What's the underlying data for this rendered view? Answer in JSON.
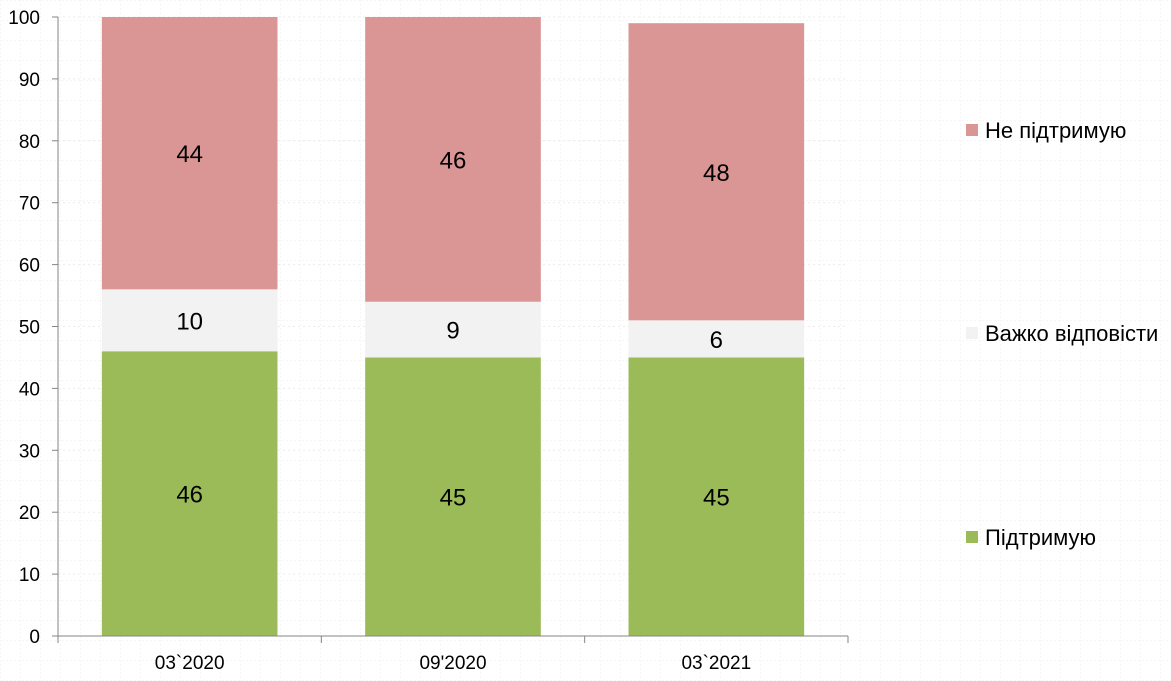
{
  "chart_data": {
    "type": "bar",
    "stacked": true,
    "title": "",
    "xlabel": "",
    "ylabel": "",
    "ylim": [
      0,
      100
    ],
    "yticks": [
      0,
      10,
      20,
      30,
      40,
      50,
      60,
      70,
      80,
      90,
      100
    ],
    "categories": [
      "03`2020",
      "09'2020",
      "03`2021"
    ],
    "series": [
      {
        "name": "Підтримую",
        "values": [
          46,
          45,
          45
        ],
        "color": "#9bbb59"
      },
      {
        "name": "Важко відповісти",
        "values": [
          10,
          9,
          6
        ],
        "color": "#f2f2f2"
      },
      {
        "name": "Не підтримую",
        "values": [
          44,
          46,
          48
        ],
        "color": "#d99694"
      }
    ],
    "legend_position": "right",
    "legend_order": [
      "Не підтримую",
      "Важко відповісти",
      "Підтримую"
    ],
    "grid": "faint dotted",
    "data_labels": true
  }
}
